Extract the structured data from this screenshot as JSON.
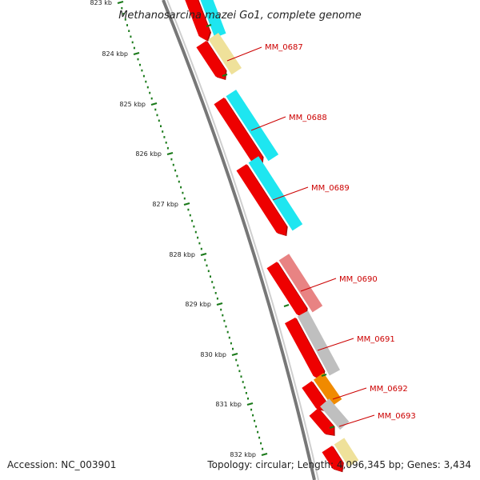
{
  "title": "Methanosarcina mazei Go1, complete genome",
  "footer": {
    "accession": "Accession: NC_003901",
    "summary": "Topology: circular; Length: 4,096,345 bp; Genes: 3,434"
  },
  "colors": {
    "cds": "#ee0000",
    "cds_dark": "#a80000",
    "backbone": "#777777",
    "tick": "#1a7a1a",
    "label": "#cc0000",
    "cyan": "#1ee6f0",
    "tan": "#efe19a",
    "pink": "#e88383",
    "grey": "#bfbfbf",
    "orange": "#f08a00"
  },
  "ticks": [
    {
      "label": "823 kb"
    },
    {
      "label": "824 kbp"
    },
    {
      "label": "825 kbp"
    },
    {
      "label": "826 kbp"
    },
    {
      "label": "827 kbp"
    },
    {
      "label": "828 kbp"
    },
    {
      "label": "829 kbp"
    },
    {
      "label": "830 kbp"
    },
    {
      "label": "831 kbp"
    },
    {
      "label": "832 kbp"
    }
  ],
  "genes": [
    {
      "name": "",
      "cat": "cyan"
    },
    {
      "name": "MM_0687",
      "cat": "tan"
    },
    {
      "name": "MM_0688",
      "cat": "cyan"
    },
    {
      "name": "MM_0689",
      "cat": "cyan"
    },
    {
      "name": "MM_0690",
      "cat": "pink"
    },
    {
      "name": "MM_0691",
      "cat": "grey"
    },
    {
      "name": "MM_0692",
      "cat": "orange"
    },
    {
      "name": "MM_0693",
      "cat": "grey"
    },
    {
      "name": "",
      "cat": "tan"
    }
  ]
}
